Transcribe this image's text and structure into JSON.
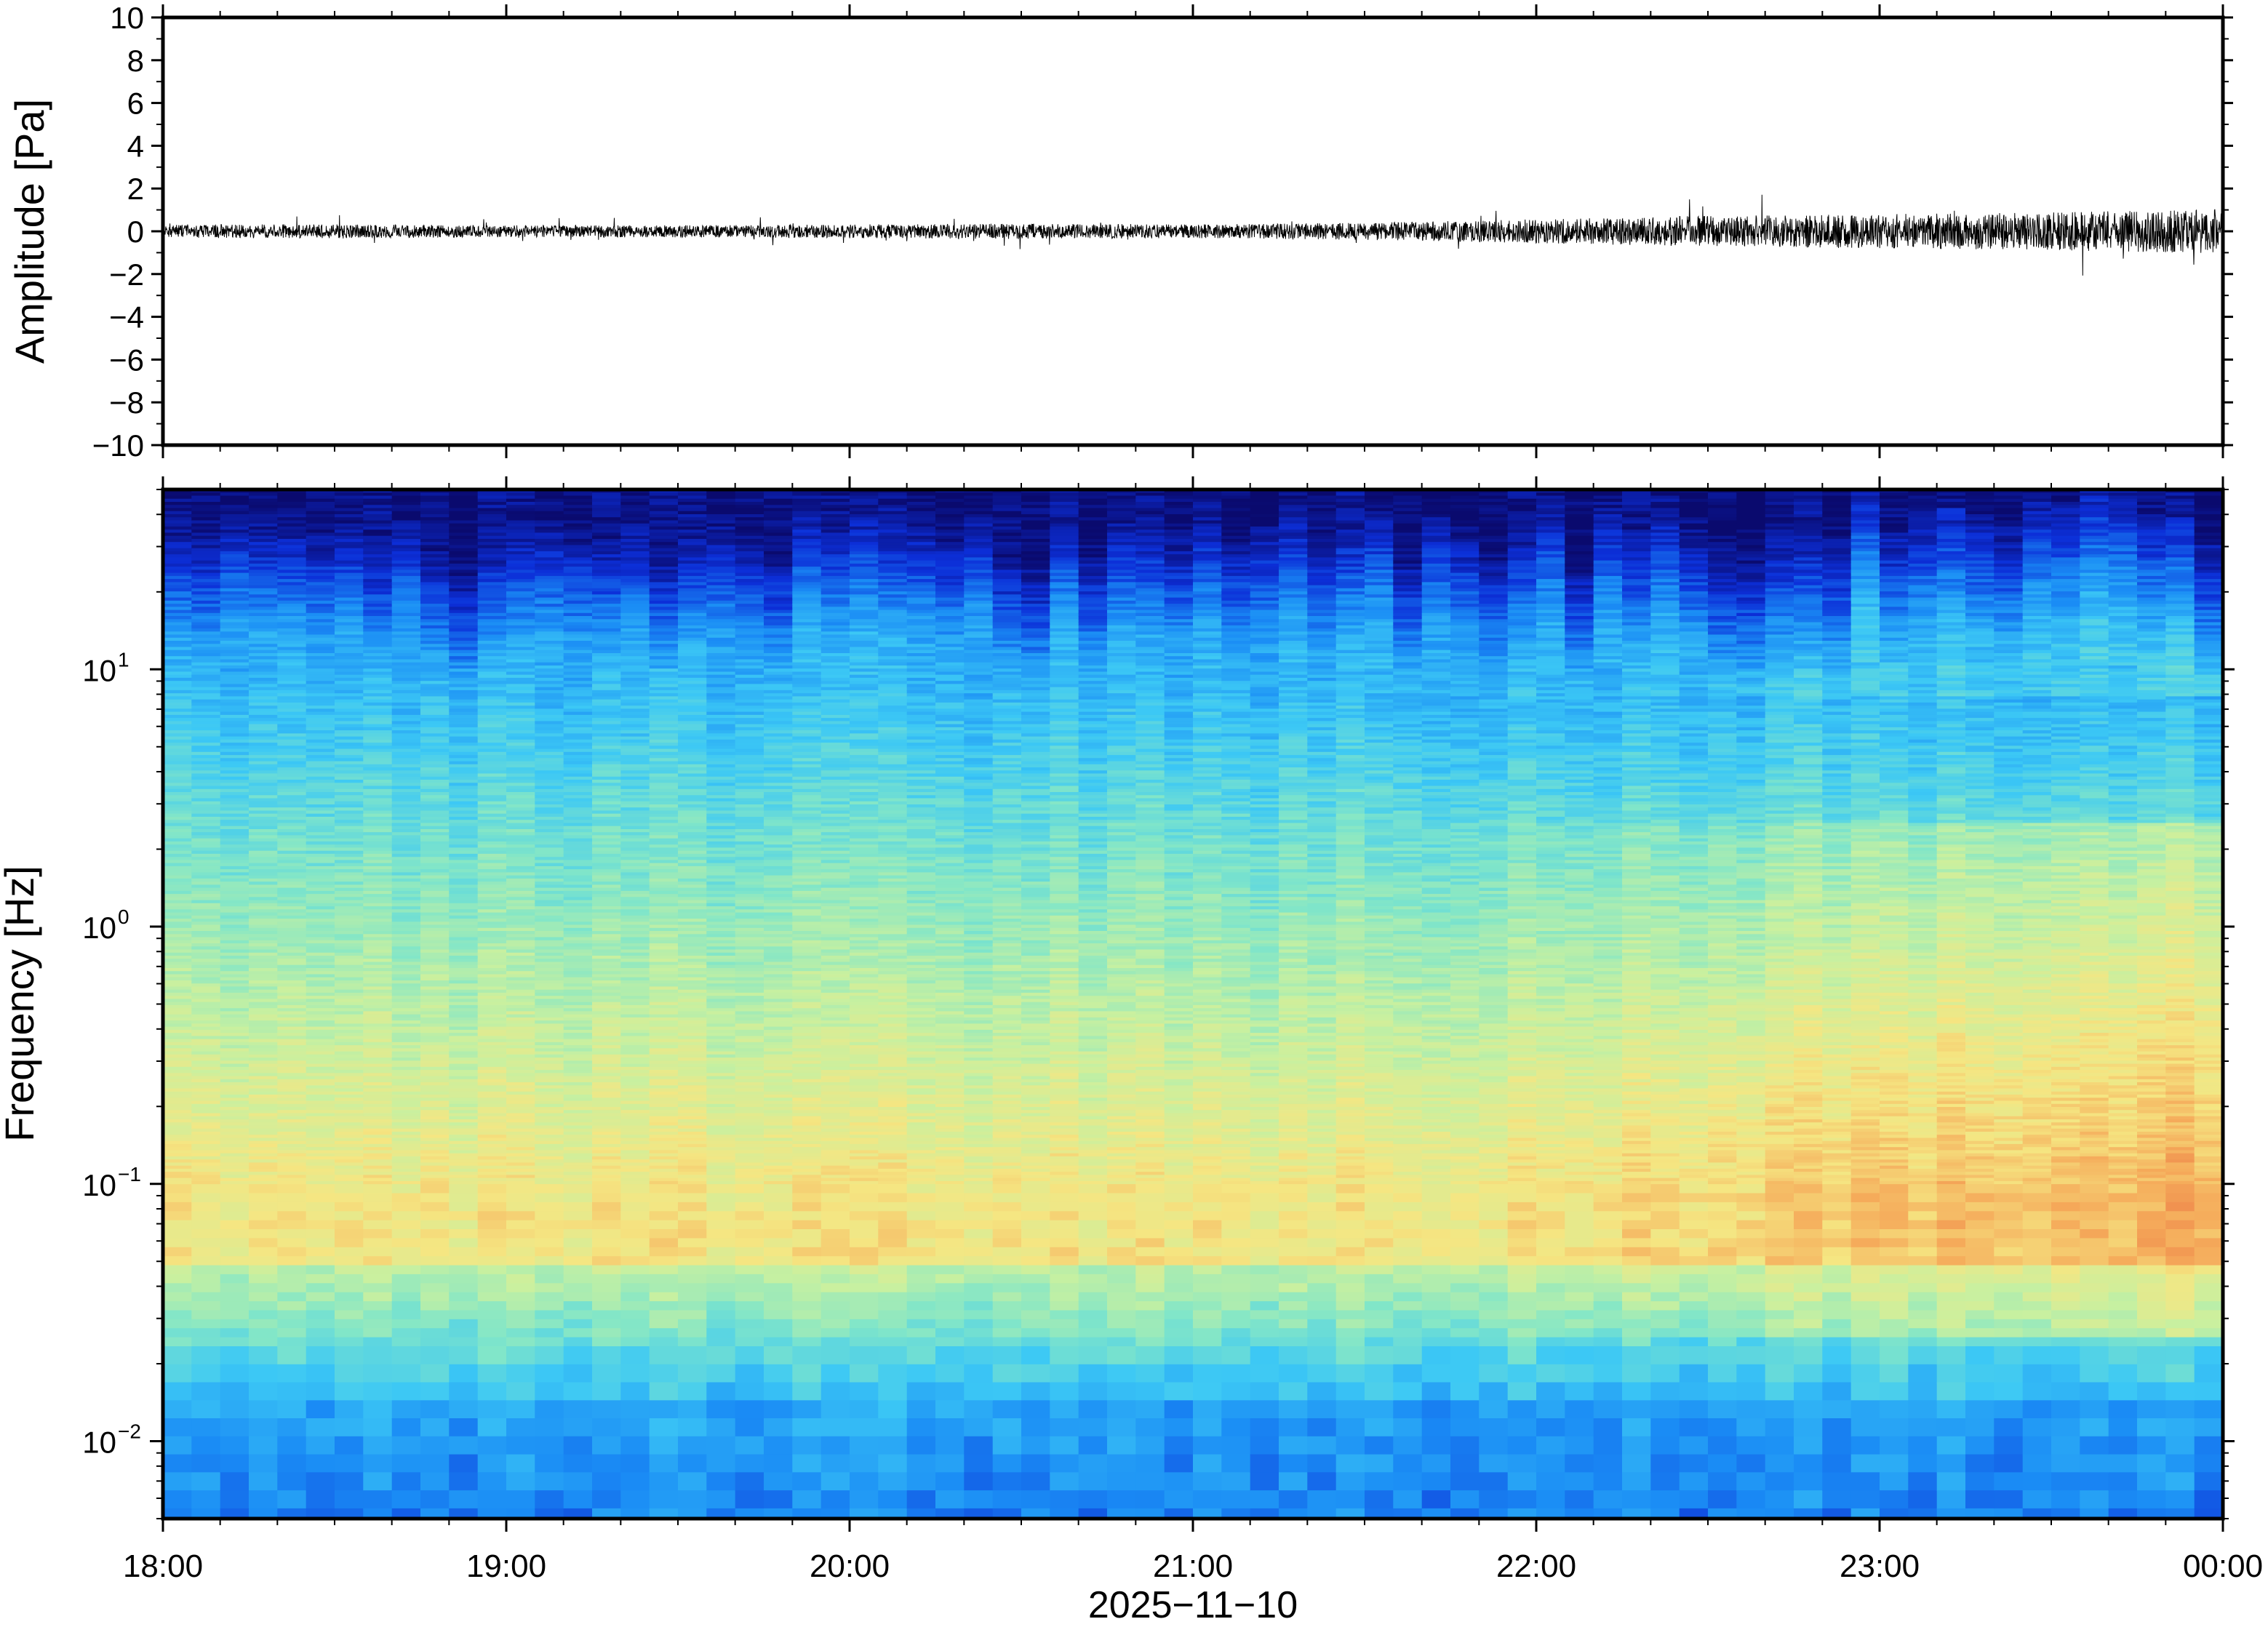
{
  "chart_data": [
    {
      "type": "line",
      "ylabel": "Amplitude [Pa]",
      "ylim": [
        -10,
        10
      ],
      "yticks": [
        "10",
        "8",
        "6",
        "4",
        "2",
        "0",
        "−2",
        "−4",
        "−6",
        "−8",
        "−10"
      ],
      "ytick_values": [
        10,
        8,
        6,
        4,
        2,
        0,
        -2,
        -4,
        -6,
        -8,
        -10
      ],
      "x_range": [
        "18:00",
        "00:00"
      ],
      "series": [
        {
          "color": "#000000",
          "x_hours": [
            18.0,
            18.5,
            19.0,
            19.5,
            20.0,
            20.5,
            21.0,
            21.5,
            22.0,
            22.5,
            23.0,
            23.5,
            24.0
          ],
          "envelope_pa": [
            0.4,
            0.4,
            0.35,
            0.35,
            0.4,
            0.45,
            0.4,
            0.5,
            0.7,
            0.9,
            1.0,
            1.1,
            1.3
          ]
        }
      ],
      "grid": false
    },
    {
      "type": "heatmap",
      "ylabel": "Frequency [Hz]",
      "yscale": "log",
      "ylim": [
        0.005,
        50
      ],
      "ytick_values": [
        10,
        1,
        0.1,
        0.01
      ],
      "yticks": [
        {
          "base": "10",
          "exp": "1"
        },
        {
          "base": "10",
          "exp": "0"
        },
        {
          "base": "10",
          "exp": "−1"
        },
        {
          "base": "10",
          "exp": "−2"
        }
      ],
      "colormap": [
        "#0a0a6e",
        "#0c2fd8",
        "#1a8cf5",
        "#3cc8f5",
        "#82e6c8",
        "#c8f0a0",
        "#f5e682",
        "#f5aa5a",
        "#e8643c"
      ],
      "time_bins_hours": [
        18.0,
        18.25,
        18.5,
        18.75,
        19.0,
        19.25,
        19.5,
        19.75,
        20.0,
        20.25,
        20.5,
        20.75,
        21.0,
        21.25,
        21.5,
        21.75,
        22.0,
        22.25,
        22.5,
        22.75,
        23.0,
        23.25,
        23.5,
        23.75
      ],
      "grid": false
    }
  ],
  "xaxis": {
    "ticks": [
      "18:00",
      "19:00",
      "20:00",
      "21:00",
      "22:00",
      "23:00",
      "00:00"
    ],
    "label": "2025−11−10"
  }
}
